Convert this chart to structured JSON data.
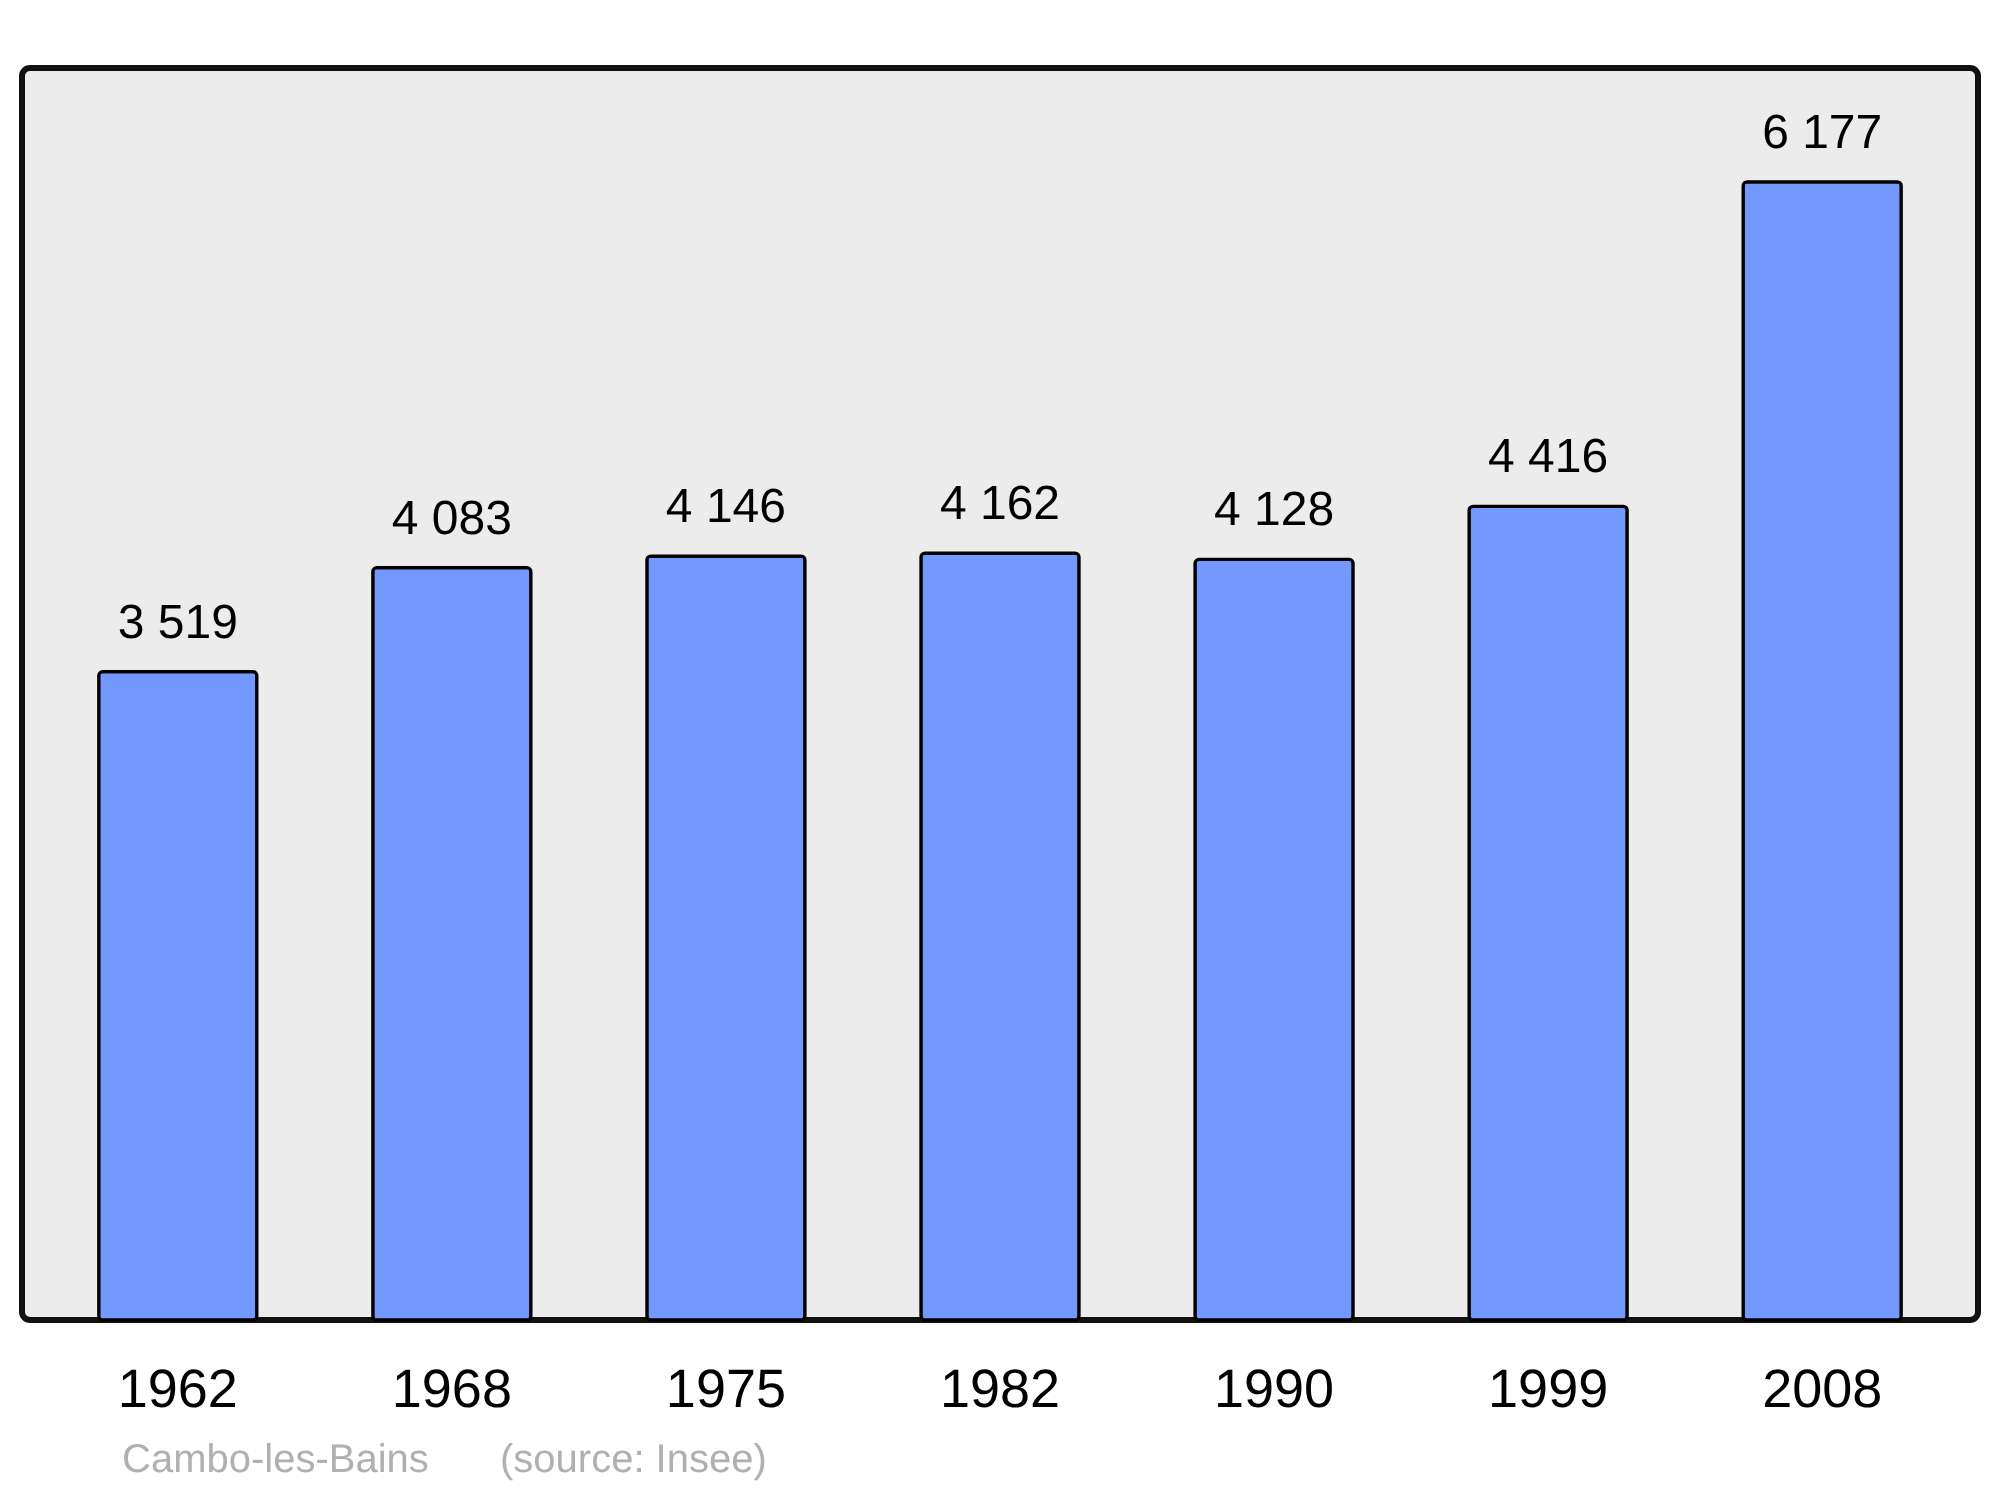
{
  "chart_data": {
    "type": "bar",
    "categories": [
      "1962",
      "1968",
      "1975",
      "1982",
      "1990",
      "1999",
      "2008"
    ],
    "values": [
      3519,
      4083,
      4146,
      4162,
      4128,
      4416,
      6177
    ],
    "value_labels": [
      "3 519",
      "4 083",
      "4 146",
      "4 162",
      "4 128",
      "4 416",
      "6 177"
    ],
    "color": "#7399ff",
    "annotations": [
      "Cambo-les-Bains",
      "(source: Insee)"
    ]
  }
}
